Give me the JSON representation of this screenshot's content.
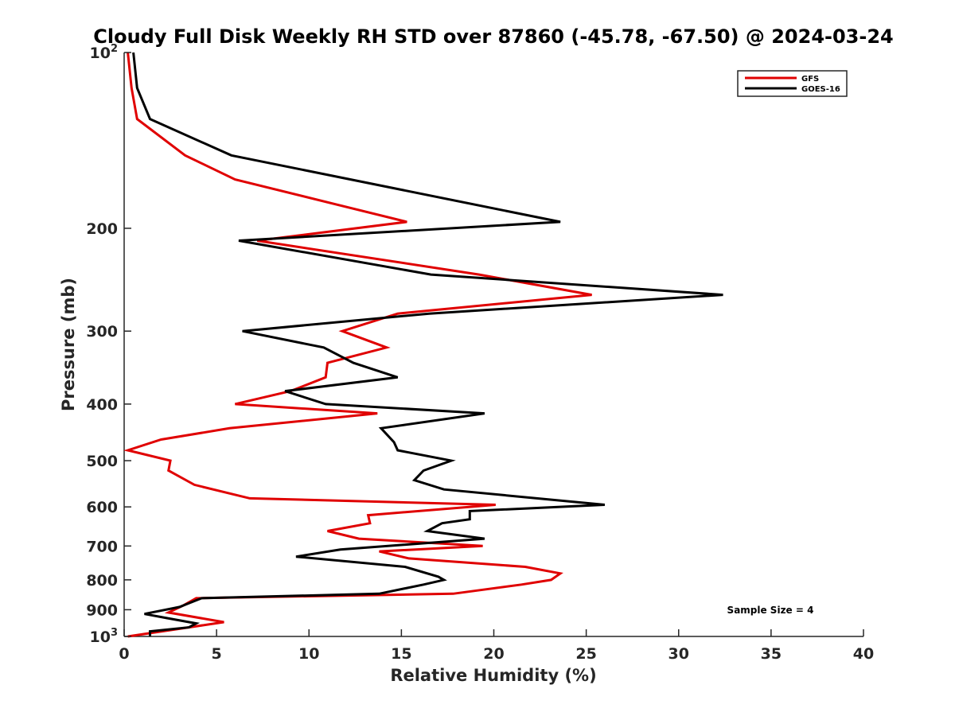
{
  "chart_data": {
    "type": "line",
    "title": "Cloudy Full Disk Weekly RH STD over 87860 (-45.78, -67.50) @ 2024-03-24",
    "xlabel": "Relative Humidity (%)",
    "ylabel": "Pressure (mb)",
    "xlim": [
      0,
      40
    ],
    "ylim": [
      100,
      1000
    ],
    "yscale": "log",
    "y_reversed": true,
    "grid": false,
    "legend_position": "top-right",
    "x_ticks": [
      {
        "value": 0,
        "label": "0"
      },
      {
        "value": 5,
        "label": "5"
      },
      {
        "value": 10,
        "label": "10"
      },
      {
        "value": 15,
        "label": "15"
      },
      {
        "value": 20,
        "label": "20"
      },
      {
        "value": 25,
        "label": "25"
      },
      {
        "value": 30,
        "label": "30"
      },
      {
        "value": 35,
        "label": "35"
      },
      {
        "value": 40,
        "label": "40"
      }
    ],
    "y_ticks": [
      {
        "value": 100,
        "base": "10",
        "exp": "2"
      },
      {
        "value": 200,
        "label": "200"
      },
      {
        "value": 300,
        "label": "300"
      },
      {
        "value": 400,
        "label": "400"
      },
      {
        "value": 500,
        "label": "500"
      },
      {
        "value": 600,
        "label": "600"
      },
      {
        "value": 700,
        "label": "700"
      },
      {
        "value": 800,
        "label": "800"
      },
      {
        "value": 900,
        "label": "900"
      },
      {
        "value": 1000,
        "base": "10",
        "exp": "3"
      }
    ],
    "annotation": "Sample Size = 4",
    "series": [
      {
        "name": "GFS",
        "color": "#e00000",
        "points": [
          [
            0.2,
            100
          ],
          [
            0.4,
            115
          ],
          [
            0.7,
            130
          ],
          [
            3.3,
            150
          ],
          [
            6.0,
            165
          ],
          [
            15.3,
            195
          ],
          [
            7.2,
            210
          ],
          [
            19.2,
            240
          ],
          [
            25.3,
            260
          ],
          [
            14.8,
            280
          ],
          [
            11.8,
            300
          ],
          [
            14.2,
            320
          ],
          [
            11.0,
            340
          ],
          [
            10.9,
            360
          ],
          [
            9.0,
            380
          ],
          [
            6.0,
            400
          ],
          [
            13.7,
            415
          ],
          [
            5.7,
            440
          ],
          [
            2.0,
            460
          ],
          [
            0.2,
            480
          ],
          [
            2.5,
            500
          ],
          [
            2.4,
            520
          ],
          [
            3.8,
            550
          ],
          [
            6.8,
            580
          ],
          [
            20.1,
            595
          ],
          [
            13.2,
            620
          ],
          [
            13.3,
            640
          ],
          [
            11.0,
            660
          ],
          [
            12.7,
            680
          ],
          [
            19.4,
            700
          ],
          [
            13.8,
            715
          ],
          [
            15.4,
            735
          ],
          [
            21.7,
            760
          ],
          [
            23.6,
            780
          ],
          [
            23.1,
            800
          ],
          [
            21.5,
            815
          ],
          [
            17.8,
            845
          ],
          [
            3.9,
            860
          ],
          [
            3.2,
            885
          ],
          [
            2.4,
            910
          ],
          [
            5.4,
            945
          ],
          [
            0.2,
            1000
          ]
        ]
      },
      {
        "name": "GOES-16",
        "color": "#000000",
        "points": [
          [
            0.5,
            100
          ],
          [
            0.7,
            115
          ],
          [
            1.4,
            130
          ],
          [
            5.8,
            150
          ],
          [
            23.6,
            195
          ],
          [
            6.2,
            210
          ],
          [
            16.6,
            240
          ],
          [
            32.4,
            260
          ],
          [
            16.5,
            280
          ],
          [
            6.4,
            300
          ],
          [
            10.8,
            320
          ],
          [
            12.4,
            340
          ],
          [
            14.8,
            360
          ],
          [
            8.7,
            380
          ],
          [
            10.9,
            400
          ],
          [
            19.5,
            415
          ],
          [
            13.9,
            440
          ],
          [
            14.6,
            465
          ],
          [
            14.8,
            480
          ],
          [
            17.7,
            500
          ],
          [
            16.2,
            520
          ],
          [
            15.7,
            540
          ],
          [
            17.3,
            560
          ],
          [
            26.0,
            595
          ],
          [
            18.7,
            610
          ],
          [
            18.7,
            630
          ],
          [
            17.2,
            640
          ],
          [
            16.4,
            660
          ],
          [
            19.5,
            680
          ],
          [
            11.7,
            710
          ],
          [
            9.3,
            730
          ],
          [
            15.2,
            760
          ],
          [
            17.0,
            790
          ],
          [
            17.3,
            800
          ],
          [
            16.2,
            815
          ],
          [
            13.8,
            845
          ],
          [
            4.2,
            860
          ],
          [
            3.6,
            875
          ],
          [
            3.0,
            890
          ],
          [
            1.1,
            915
          ],
          [
            2.3,
            930
          ],
          [
            3.9,
            950
          ],
          [
            3.5,
            965
          ],
          [
            1.4,
            980
          ],
          [
            1.4,
            1000
          ]
        ]
      }
    ]
  }
}
